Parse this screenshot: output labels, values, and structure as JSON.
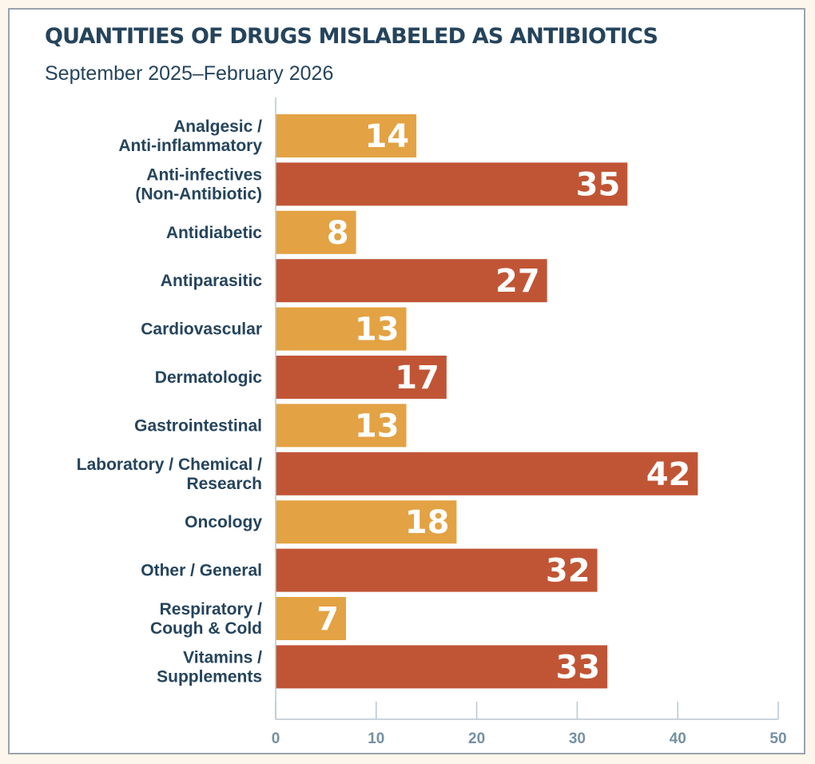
{
  "chart_data": {
    "type": "bar",
    "orientation": "horizontal",
    "title": "QUANTITIES OF DRUGS MISLABELED AS ANTIBIOTICS",
    "subtitle": "September 2025–February 2026",
    "xlabel": "",
    "ylabel": "",
    "xlim": [
      0,
      50
    ],
    "xticks": [
      0,
      10,
      20,
      30,
      40,
      50
    ],
    "grid": false,
    "legend": "none",
    "categories": [
      [
        "Analgesic / ",
        "Anti-inflammatory"
      ],
      [
        "Anti-infectives",
        "(Non-Antibiotic)"
      ],
      [
        "Antidiabetic"
      ],
      [
        "Antiparasitic"
      ],
      [
        "Cardiovascular"
      ],
      [
        "Dermatologic"
      ],
      [
        "Gastrointestinal"
      ],
      [
        "Laboratory / Chemical /",
        "Research"
      ],
      [
        "Oncology"
      ],
      [
        "Other / General"
      ],
      [
        "Respiratory /",
        "Cough & Cold"
      ],
      [
        "Vitamins /",
        "Supplements"
      ]
    ],
    "values": [
      14,
      35,
      8,
      27,
      13,
      17,
      13,
      42,
      18,
      32,
      7,
      33
    ],
    "colors": [
      "#e3a243",
      "#c05535"
    ],
    "data_labels": true
  },
  "theme": {
    "background": "#fcf6ec",
    "card": "#ffffff",
    "text": "#25445c",
    "axis": "#b9c7d2",
    "tick_text": "#7590a3"
  }
}
